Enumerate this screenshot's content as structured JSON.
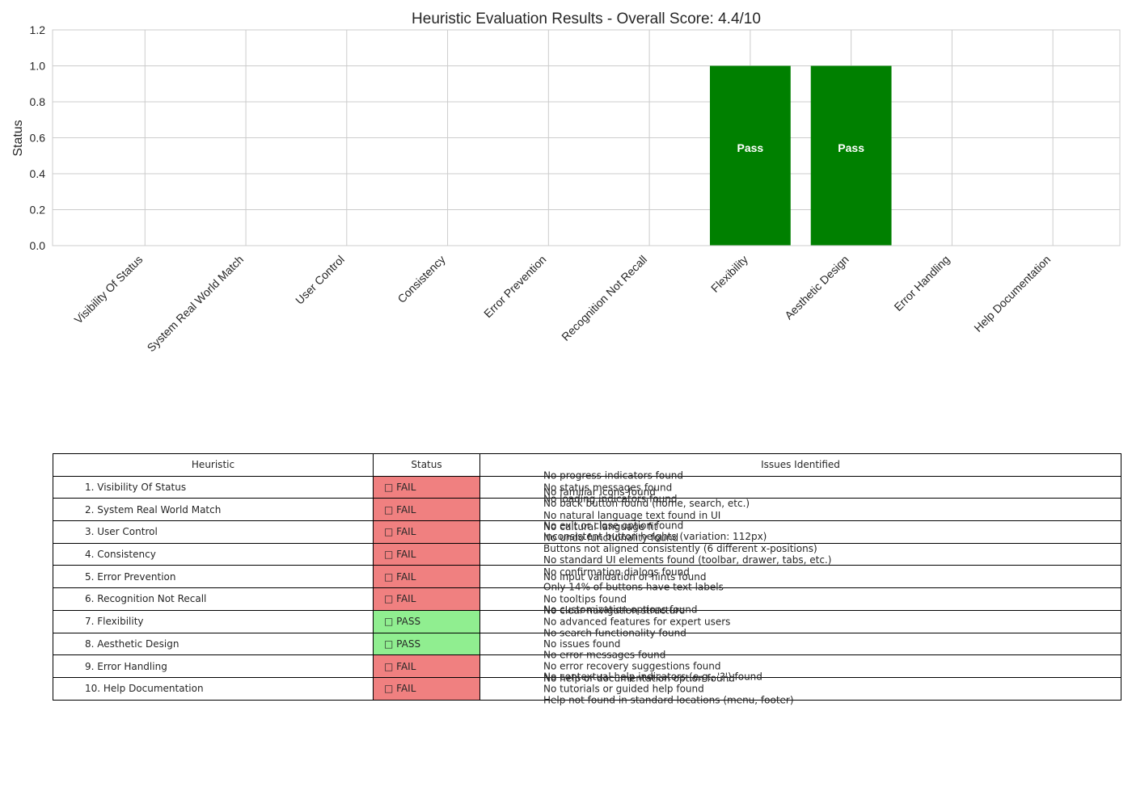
{
  "chart_data": {
    "type": "bar",
    "title": "Heuristic Evaluation Results - Overall Score: 4.4/10",
    "xlabel": "",
    "ylabel": "Status",
    "ylim": [
      0,
      1.2
    ],
    "yticks": [
      "0.0",
      "0.2",
      "0.4",
      "0.6",
      "0.8",
      "1.0",
      "1.2"
    ],
    "ytick_values": [
      0,
      0.2,
      0.4,
      0.6,
      0.8,
      1.0,
      1.2
    ],
    "categories": [
      "Visibility Of Status",
      "System Real World Match",
      "User Control",
      "Consistency",
      "Error Prevention",
      "Recognition Not Recall",
      "Flexibility",
      "Aesthetic Design",
      "Error Handling",
      "Help Documentation"
    ],
    "values": [
      0,
      0,
      0,
      0,
      0,
      0,
      1,
      1,
      0,
      0
    ],
    "bar_labels": [
      "",
      "",
      "",
      "",
      "",
      "",
      "Pass",
      "Pass",
      "",
      ""
    ],
    "bar_color": "#008000",
    "grid": true
  },
  "table": {
    "headers": [
      "Heuristic",
      "Status",
      "Issues Identified"
    ],
    "rows": [
      {
        "name": "1. Visibility Of Status",
        "status": "□ FAIL",
        "result": "fail",
        "issues": [
          "No progress indicators found",
          "No status messages found",
          "No loading indicators found"
        ]
      },
      {
        "name": "2. System Real World Match",
        "status": "□ FAIL",
        "result": "fail",
        "issues": [
          "No familiar icons found",
          "No back button found (home, search, etc.)",
          "No natural language text found in UI",
          "No cultural language fit"
        ]
      },
      {
        "name": "3. User Control",
        "status": "□ FAIL",
        "result": "fail",
        "issues": [
          "No exit or close option found",
          "No undo functionality found"
        ]
      },
      {
        "name": "4. Consistency",
        "status": "□ FAIL",
        "result": "fail",
        "issues": [
          "Inconsistent button heights (variation: 112px)",
          "Buttons not aligned consistently (6 different x-positions)",
          "No standard UI elements found (toolbar, drawer, tabs, etc.)",
          "No confirmation dialogs found"
        ]
      },
      {
        "name": "5. Error Prevention",
        "status": "□ FAIL",
        "result": "fail",
        "issues": [
          "No input validation or hints found"
        ]
      },
      {
        "name": "6. Recognition Not Recall",
        "status": "□ FAIL",
        "result": "fail",
        "issues": [
          "Only 14% of buttons have text labels",
          "No tooltips found",
          "No clear navigation structure"
        ]
      },
      {
        "name": "7. Flexibility",
        "status": "□ PASS",
        "result": "pass",
        "issues": [
          "No customization options found",
          "No advanced features for expert users",
          "No search functionality found"
        ]
      },
      {
        "name": "8. Aesthetic Design",
        "status": "□ PASS",
        "result": "pass",
        "issues": [
          "No issues found"
        ]
      },
      {
        "name": "9. Error Handling",
        "status": "□ FAIL",
        "result": "fail",
        "issues": [
          "No error messages found",
          "No error recovery suggestions found",
          "No help or documentation option found"
        ]
      },
      {
        "name": "10. Help Documentation",
        "status": "□ FAIL",
        "result": "fail",
        "issues": [
          "No contextual help indicators (e.g., '?') found",
          "No tutorials or guided help found",
          "Help not found in standard locations (menu, footer)"
        ]
      }
    ]
  }
}
